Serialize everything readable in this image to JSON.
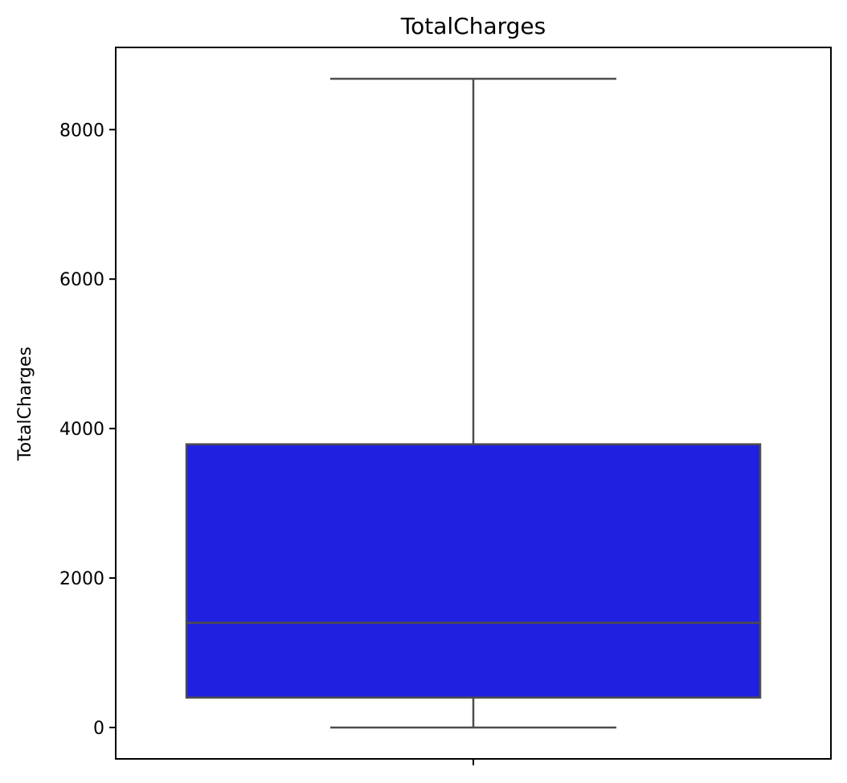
{
  "chart_data": {
    "type": "box",
    "title": "TotalCharges",
    "xlabel": "",
    "ylabel": "TotalCharges",
    "categories": [
      ""
    ],
    "box": {
      "min": 0,
      "q1": 400,
      "median": 1400,
      "q3": 3790,
      "max": 8680
    },
    "ylim": [
      -420,
      9100
    ],
    "yticks": [
      0,
      2000,
      4000,
      6000,
      8000
    ],
    "grid": false,
    "box_color": "#2020e0",
    "line_color": "#4d4d4d"
  }
}
